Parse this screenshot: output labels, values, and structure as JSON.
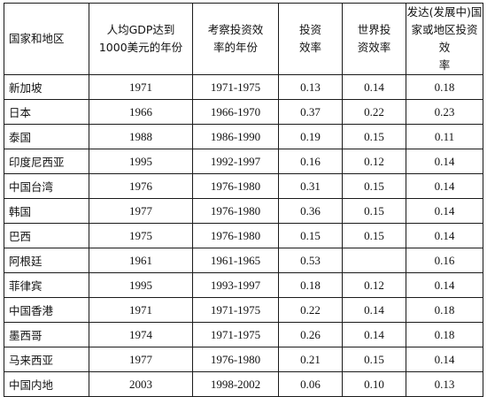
{
  "table": {
    "headers": [
      [
        "国家和地区"
      ],
      [
        "人均GDP达到",
        "1000美元的年份"
      ],
      [
        "考察投资效",
        "率的年份"
      ],
      [
        "投资",
        "效率"
      ],
      [
        "世界投",
        "资效率"
      ],
      [
        "发达(发展中)国",
        "家或地区投资效",
        "率"
      ]
    ],
    "rows": [
      [
        "新加坡",
        "1971",
        "1971-1975",
        "0.13",
        "0.14",
        "0.18"
      ],
      [
        "日本",
        "1966",
        "1966-1970",
        "0.37",
        "0.22",
        "0.23"
      ],
      [
        "泰国",
        "1988",
        "1986-1990",
        "0.19",
        "0.15",
        "0.11"
      ],
      [
        "印度尼西亚",
        "1995",
        "1992-1997",
        "0.16",
        "0.12",
        "0.14"
      ],
      [
        "中国台湾",
        "1976",
        "1976-1980",
        "0.31",
        "0.15",
        "0.14"
      ],
      [
        "韩国",
        "1977",
        "1976-1980",
        "0.36",
        "0.15",
        "0.14"
      ],
      [
        "巴西",
        "1975",
        "1976-1980",
        "0.15",
        "0.15",
        "0.14"
      ],
      [
        "阿根廷",
        "1961",
        "1961-1965",
        "0.53",
        "",
        "0.16"
      ],
      [
        "菲律宾",
        "1995",
        "1993-1997",
        "0.18",
        "0.12",
        "0.14"
      ],
      [
        "中国香港",
        "1971",
        "1971-1975",
        "0.22",
        "0.14",
        "0.18"
      ],
      [
        "墨西哥",
        "1974",
        "1971-1975",
        "0.26",
        "0.14",
        "0.18"
      ],
      [
        "马来西亚",
        "1977",
        "1976-1980",
        "0.21",
        "0.15",
        "0.14"
      ],
      [
        "中国内地",
        "2003",
        "1998-2002",
        "0.06",
        "0.10",
        "0.13"
      ]
    ]
  }
}
